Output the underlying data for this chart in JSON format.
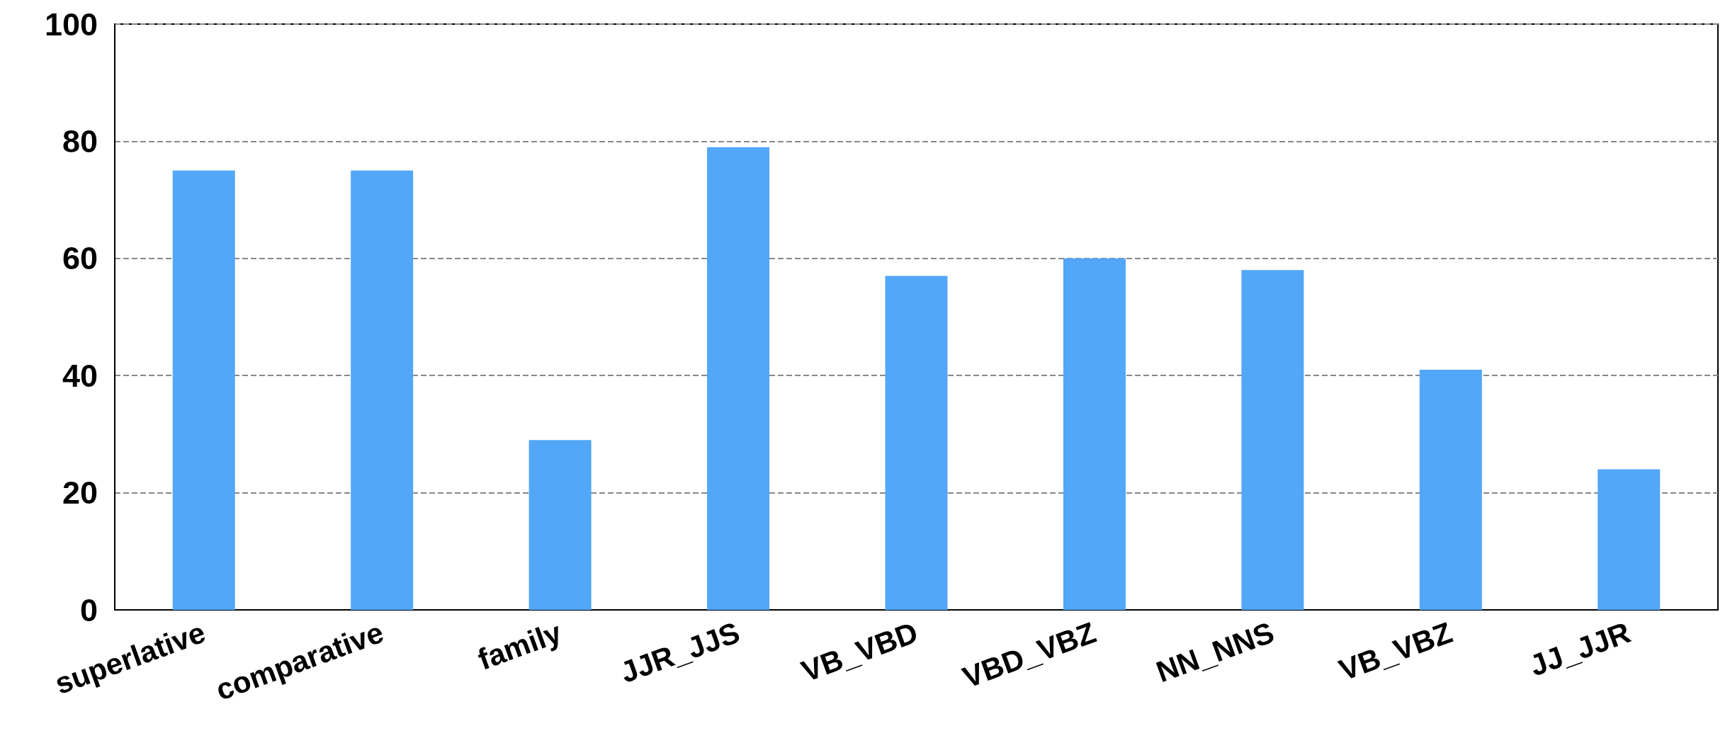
{
  "chart_data": {
    "type": "bar",
    "categories": [
      "superlative",
      "comparative",
      "family",
      "JJR_JJS",
      "VB_VBD",
      "VBD_VBZ",
      "NN_NNS",
      "VB_VBZ",
      "JJ_JJR"
    ],
    "values": [
      75,
      75,
      29,
      79,
      57,
      60,
      58,
      41,
      24
    ],
    "color": "#52a7f9",
    "ylim": [
      0,
      100
    ],
    "yticks": [
      0,
      20,
      40,
      60,
      80,
      100
    ],
    "grid": "y"
  }
}
